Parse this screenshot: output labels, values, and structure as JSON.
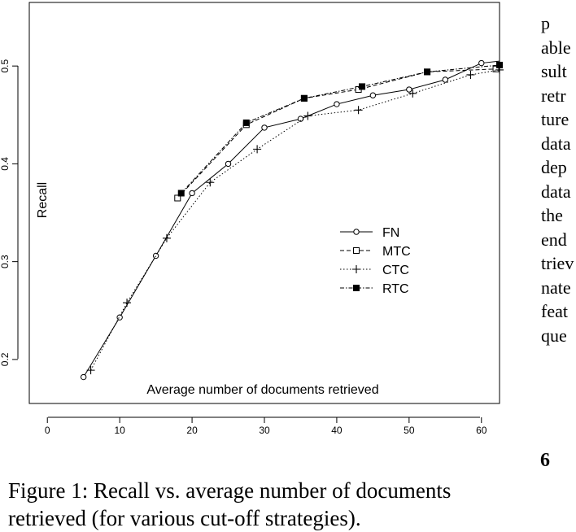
{
  "chart_data": {
    "type": "line",
    "title": "",
    "xlabel": "Average number of documents retrieved",
    "ylabel": "Recall",
    "xlim": [
      -2.5,
      62.5
    ],
    "ylim": [
      0.155,
      0.565
    ],
    "xticks": [
      "0",
      "10",
      "20",
      "30",
      "40",
      "50",
      "60"
    ],
    "yticks": [
      "0.2",
      "0.3",
      "0.4",
      "0.5"
    ],
    "legend_position": "center-right",
    "grid": false,
    "series": [
      {
        "name": "FN",
        "marker": "open-circle",
        "linestyle": "solid",
        "x": [
          5,
          10,
          15,
          20,
          25,
          30,
          35,
          40,
          45,
          50,
          55,
          60,
          62.5
        ],
        "y": [
          0.182,
          0.243,
          0.306,
          0.37,
          0.4,
          0.437,
          0.446,
          0.461,
          0.47,
          0.476,
          0.486,
          0.503,
          0.505
        ]
      },
      {
        "name": "MTC",
        "marker": "open-square",
        "linestyle": "dashed",
        "x": [
          18,
          27.5,
          35.5,
          43,
          52.5,
          62
        ],
        "y": [
          0.365,
          0.44,
          0.467,
          0.476,
          0.494,
          0.497
        ]
      },
      {
        "name": "CTC",
        "marker": "plus",
        "linestyle": "dotted",
        "x": [
          6,
          11,
          16.5,
          22.5,
          29,
          36,
          43,
          50.5,
          58.5,
          62.5
        ],
        "y": [
          0.189,
          0.258,
          0.324,
          0.381,
          0.415,
          0.449,
          0.455,
          0.472,
          0.491,
          0.496
        ]
      },
      {
        "name": "RTC",
        "marker": "filled-square",
        "linestyle": "dash-dot",
        "x": [
          18.5,
          27.5,
          35.5,
          43.5,
          52.5,
          62.5
        ],
        "y": [
          0.37,
          0.442,
          0.467,
          0.479,
          0.494,
          0.501
        ]
      }
    ]
  },
  "caption": {
    "line1": "Figure 1: Recall vs. average number of documents",
    "line2": "retrieved (for various cut-off strategies)."
  },
  "side_text": {
    "lines": [
      "p",
      "able",
      "sult",
      "retr",
      "ture",
      "data",
      "dep",
      "data",
      "the",
      "end",
      "triev",
      "nate",
      "feat",
      "que"
    ],
    "section_number": "6"
  }
}
